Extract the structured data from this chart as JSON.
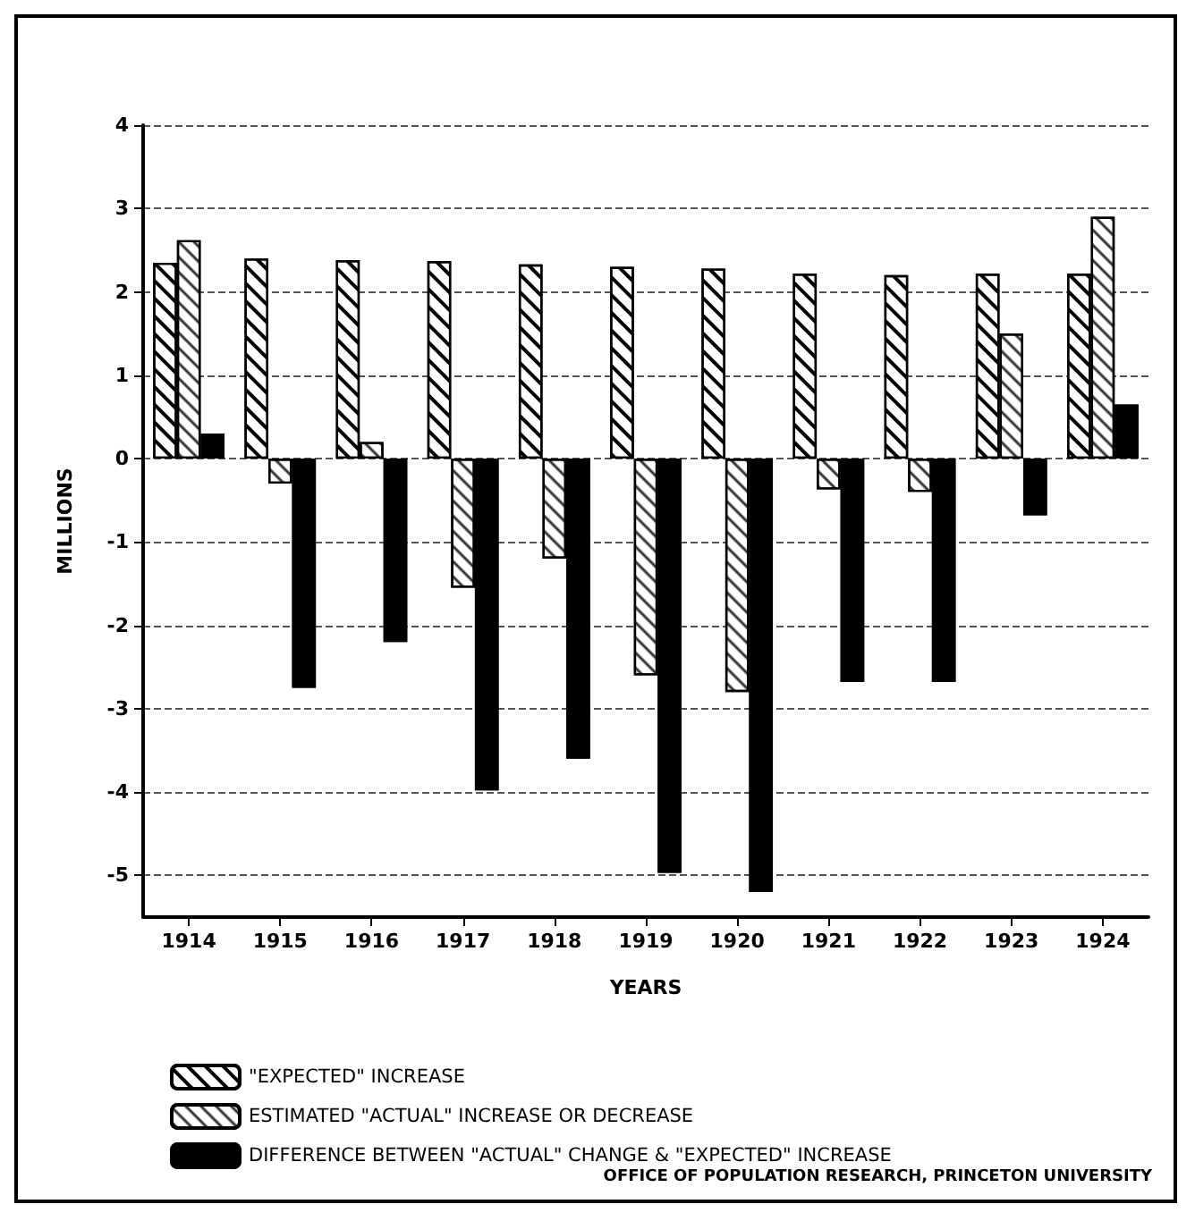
{
  "chart_data": {
    "type": "bar",
    "xlabel": "YEARS",
    "ylabel": "MILLIONS",
    "categories": [
      "1914",
      "1915",
      "1916",
      "1917",
      "1918",
      "1919",
      "1920",
      "1921",
      "1922",
      "1923",
      "1924"
    ],
    "series": [
      {
        "name": "\"EXPECTED\" INCREASE",
        "color": "#ffffff",
        "values": [
          2.35,
          2.4,
          2.38,
          2.37,
          2.33,
          2.3,
          2.28,
          2.22,
          2.2,
          2.22,
          2.22
        ]
      },
      {
        "name": "ESTIMATED \"ACTUAL\" INCREASE OR DECREASE",
        "color": "#ffffff",
        "values": [
          2.62,
          -0.3,
          0.2,
          -1.55,
          -1.2,
          -2.6,
          -2.8,
          -0.37,
          -0.4,
          1.5,
          2.9
        ]
      },
      {
        "name": "DIFFERENCE BETWEEN \"ACTUAL\" CHANGE & \"EXPECTED\" INCREASE",
        "color": "#000000",
        "values": [
          0.3,
          -2.75,
          -2.2,
          -3.98,
          -3.6,
          -4.97,
          -5.2,
          -2.68,
          -2.68,
          -0.68,
          0.65
        ]
      }
    ],
    "ylim": [
      -5.5,
      4
    ],
    "yticks": [
      -5,
      -4,
      -3,
      -2,
      -1,
      0,
      1,
      2,
      3,
      4
    ],
    "grid": "y",
    "legend": "bottom",
    "annotations": [
      "OFFICE OF POPULATION RESEARCH, PRINCETON UNIVERSITY"
    ]
  }
}
